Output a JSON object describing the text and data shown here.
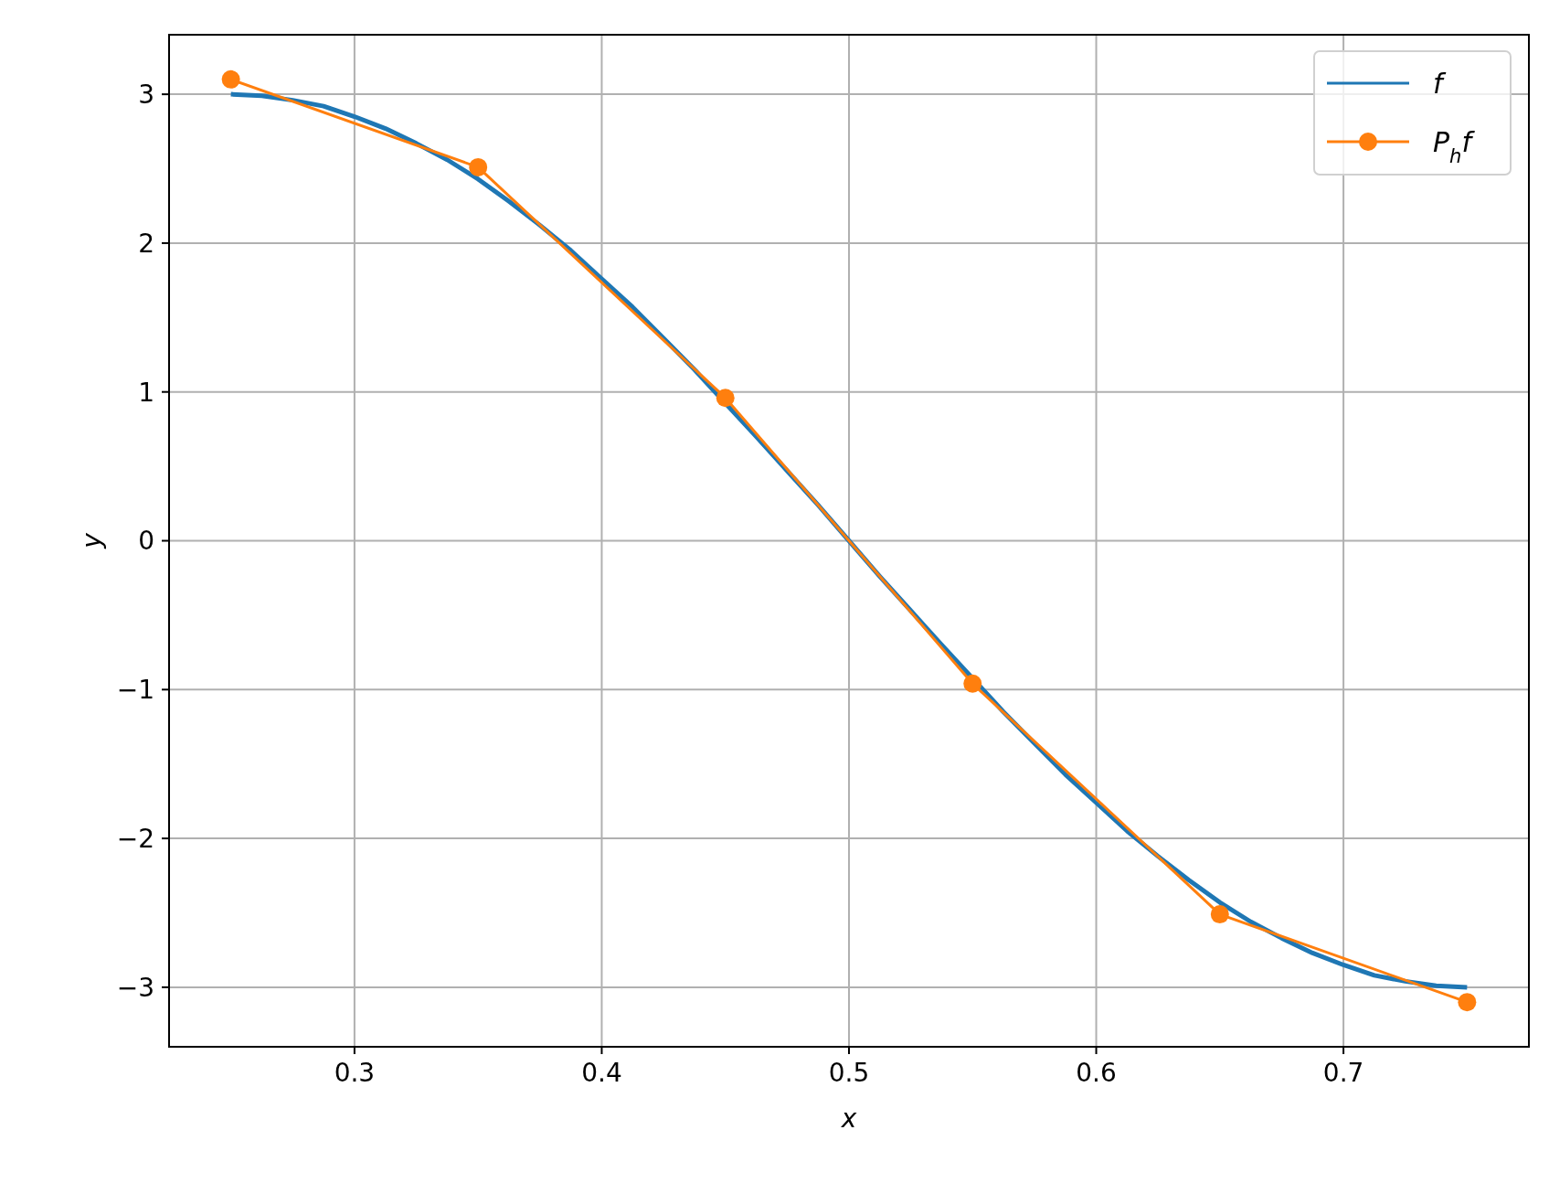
{
  "chart_data": {
    "type": "line",
    "xlabel": "x",
    "ylabel": "y",
    "xlim": [
      0.225,
      0.775
    ],
    "ylim": [
      -3.4,
      3.4
    ],
    "xticks": [
      0.3,
      0.4,
      0.5,
      0.6,
      0.7
    ],
    "yticks": [
      {
        "value": -3,
        "label": "−3"
      },
      {
        "value": -2,
        "label": "−2"
      },
      {
        "value": -1,
        "label": "−1"
      },
      0,
      1,
      2,
      3
    ],
    "grid": true,
    "legend": "top right",
    "series": [
      {
        "name": "f",
        "color": "#1f77b4",
        "marker": "none",
        "x": [
          0.25,
          0.2625,
          0.275,
          0.2875,
          0.3,
          0.3125,
          0.325,
          0.3375,
          0.35,
          0.3625,
          0.375,
          0.3875,
          0.4,
          0.4125,
          0.425,
          0.4375,
          0.4425,
          0.4625,
          0.475,
          0.4875,
          0.5,
          0.5125,
          0.525,
          0.5375,
          0.5575,
          0.5625,
          0.575,
          0.5875,
          0.6,
          0.6125,
          0.625,
          0.6375,
          0.65,
          0.6625,
          0.675,
          0.6875,
          0.7,
          0.7125,
          0.725,
          0.7375,
          0.75
        ],
        "values": [
          3,
          2.99,
          2.96,
          2.92,
          2.85,
          2.77,
          2.67,
          2.56,
          2.43,
          2.28,
          2.12,
          1.95,
          1.76,
          1.57,
          1.36,
          1.15,
          1.06,
          0.7,
          0.47,
          0.24,
          0,
          -0.24,
          -0.47,
          -0.7,
          -1.06,
          -1.15,
          -1.36,
          -1.57,
          -1.76,
          -1.95,
          -2.12,
          -2.28,
          -2.43,
          -2.56,
          -2.67,
          -2.77,
          -2.85,
          -2.92,
          -2.96,
          -2.99,
          -3
        ]
      },
      {
        "name": "P$_{h}$f",
        "color": "#ff7f0e",
        "marker": "circle",
        "x": [
          0.25,
          0.35,
          0.45,
          0.55,
          0.65,
          0.75
        ],
        "values": [
          3.1,
          2.51,
          0.96,
          -0.96,
          -2.51,
          -3.1
        ]
      }
    ]
  }
}
